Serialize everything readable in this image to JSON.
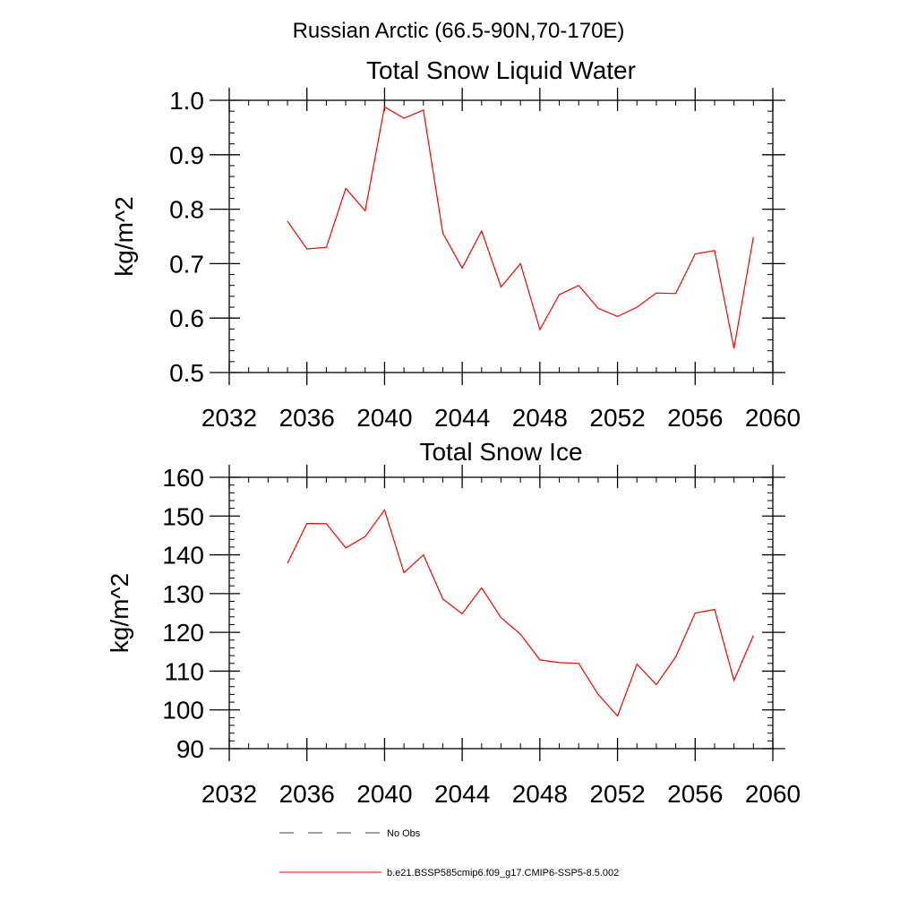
{
  "figure": {
    "suptitle": "Russian Arctic (66.5-90N,70-170E)",
    "line_color": "#ff0000"
  },
  "legend": {
    "items": [
      {
        "label": "No Obs",
        "style": "dashed",
        "color": "#3a3a8a"
      },
      {
        "label": "b.e21.BSSP585cmip6.f09_g17.CMIP6-SSP5-8.5.002",
        "style": "solid",
        "color": "#ff0000"
      }
    ]
  },
  "chart_data": [
    {
      "type": "line",
      "title": "Total Snow Liquid Water",
      "xlabel": "",
      "ylabel": "kg/m^2",
      "xlim": [
        2032,
        2060
      ],
      "ylim": [
        0.5,
        1.0
      ],
      "xticks": [
        2032,
        2036,
        2040,
        2044,
        2048,
        2052,
        2056,
        2060
      ],
      "yticks": [
        "0.5",
        "0.6",
        "0.7",
        "0.8",
        "0.9",
        "1.0"
      ],
      "series": [
        {
          "color": "#ff0000",
          "x": [
            2035,
            2036,
            2037,
            2038,
            2039,
            2040,
            2041,
            2042,
            2043,
            2044,
            2045,
            2046,
            2047,
            2048,
            2049,
            2050,
            2051,
            2052,
            2053,
            2054,
            2055,
            2056,
            2057,
            2058,
            2059
          ],
          "y": [
            0.778,
            0.727,
            0.73,
            0.838,
            0.797,
            0.988,
            0.967,
            0.982,
            0.756,
            0.692,
            0.76,
            0.657,
            0.7,
            0.579,
            0.643,
            0.66,
            0.618,
            0.603,
            0.62,
            0.646,
            0.645,
            0.718,
            0.724,
            0.544,
            0.749
          ]
        }
      ]
    },
    {
      "type": "line",
      "title": "Total Snow Ice",
      "xlabel": "",
      "ylabel": "kg/m^2",
      "xlim": [
        2032,
        2060
      ],
      "ylim": [
        90,
        160
      ],
      "xticks": [
        2032,
        2036,
        2040,
        2044,
        2048,
        2052,
        2056,
        2060
      ],
      "yticks": [
        "90",
        "100",
        "110",
        "120",
        "130",
        "140",
        "150",
        "160"
      ],
      "series": [
        {
          "color": "#ff0000",
          "x": [
            2035,
            2036,
            2037,
            2038,
            2039,
            2040,
            2041,
            2042,
            2043,
            2044,
            2045,
            2046,
            2047,
            2048,
            2049,
            2050,
            2051,
            2052,
            2053,
            2054,
            2055,
            2056,
            2057,
            2058,
            2059
          ],
          "y": [
            137.8,
            148.1,
            148.0,
            141.8,
            144.7,
            151.6,
            135.4,
            140.0,
            128.6,
            124.8,
            131.5,
            123.8,
            119.5,
            112.9,
            112.2,
            112.0,
            104.0,
            98.4,
            111.8,
            106.5,
            113.7,
            125.0,
            125.9,
            107.6,
            119.2
          ]
        }
      ]
    }
  ]
}
